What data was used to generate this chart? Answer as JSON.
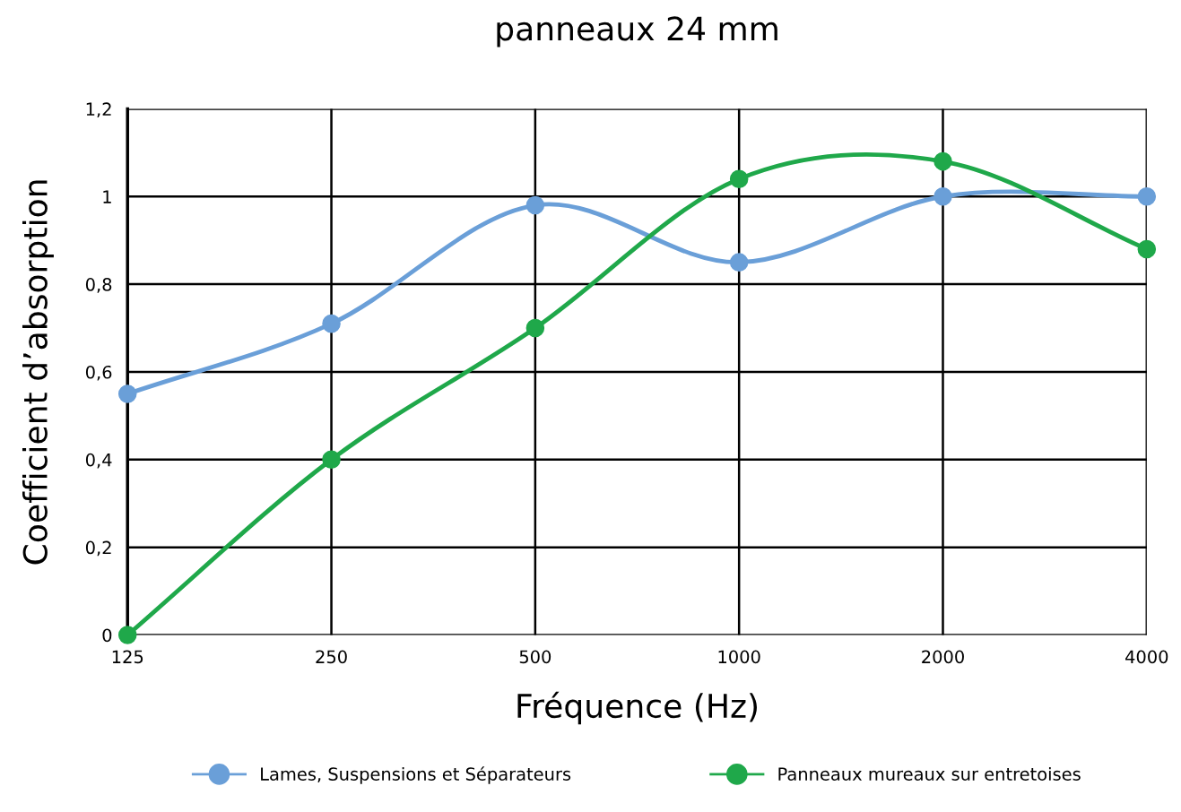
{
  "chart_data": {
    "type": "line",
    "title": "panneaux 24 mm",
    "xlabel": "Fréquence (Hz)",
    "ylabel": "Coefficient d’absorption",
    "categories": [
      "125",
      "250",
      "500",
      "1000",
      "2000",
      "4000"
    ],
    "series": [
      {
        "name": "Lames, Suspensions et Séparateurs",
        "color": "#6a9fd8",
        "values": [
          0.55,
          0.71,
          0.98,
          0.85,
          1.0,
          1.0
        ]
      },
      {
        "name": "Panneaux mureaux sur entretoises",
        "color": "#1fa84a",
        "values": [
          0.0,
          0.4,
          0.7,
          1.04,
          1.08,
          0.88
        ]
      }
    ],
    "ylim": [
      0,
      1.2
    ],
    "yticks": [
      {
        "value": 0,
        "label": "0"
      },
      {
        "value": 0.2,
        "label": "0,2"
      },
      {
        "value": 0.4,
        "label": "0,4"
      },
      {
        "value": 0.6,
        "label": "0,6"
      },
      {
        "value": 0.8,
        "label": "0,8"
      },
      {
        "value": 1,
        "label": "1"
      },
      {
        "value": 1.2,
        "label": "1,2"
      }
    ],
    "grid": true,
    "legend": "bottom",
    "marker": "circle",
    "line_style": "solid"
  }
}
